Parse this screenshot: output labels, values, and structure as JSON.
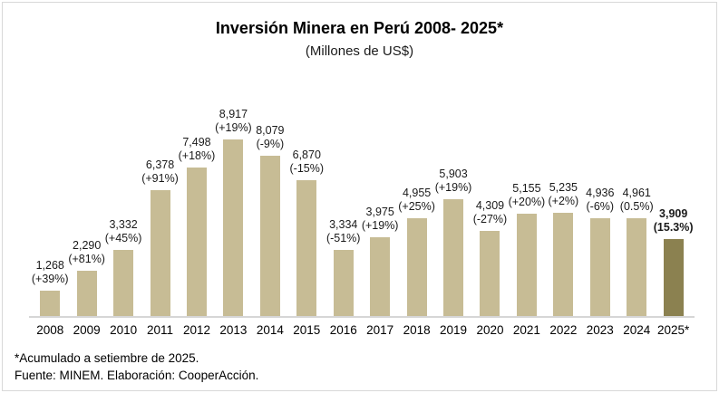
{
  "title": "Inversión Minera en Perú 2008- 2025*",
  "subtitle": "(Millones de US$)",
  "footnote": "*Acumulado a setiembre de 2025.",
  "source": "Fuente: MINEM. Elaboración: CooperAcción.",
  "colors": {
    "bar": "#c7bc95",
    "bar_highlight": "#8b8150",
    "axis_line": "#d6d6d6",
    "text": "#1a1a1a"
  },
  "chart_data": {
    "type": "bar",
    "title": "Inversión Minera en Perú 2008- 2025*",
    "subtitle": "(Millones de US$)",
    "categories": [
      "2008",
      "2009",
      "2010",
      "2011",
      "2012",
      "2013",
      "2014",
      "2015",
      "2016",
      "2017",
      "2018",
      "2019",
      "2020",
      "2021",
      "2022",
      "2023",
      "2024",
      "2025*"
    ],
    "values": [
      1268,
      2290,
      3332,
      6378,
      7498,
      8917,
      8079,
      6870,
      3334,
      3975,
      4955,
      5903,
      4309,
      5155,
      5235,
      4936,
      4961,
      3909
    ],
    "value_labels": [
      "1,268",
      "2,290",
      "3,332",
      "6,378",
      "7,498",
      "8,917",
      "8,079",
      "6,870",
      "3,334",
      "3,975",
      "4,955",
      "5,903",
      "4,309",
      "5,155",
      "5,235",
      "4,936",
      "4,961",
      "3,909"
    ],
    "pct_labels": [
      "(+39%)",
      "(+81%)",
      "(+45%)",
      "(+91%)",
      "(+18%)",
      "(+19%)",
      "(-9%)",
      "(-15%)",
      "(-51%)",
      "(+19%)",
      "(+25%)",
      "(+19%)",
      "(-27%)",
      "(+20%)",
      "(+2%)",
      "(-6%)",
      "(0.5%)",
      "(15.3%)"
    ],
    "highlight_index": 17,
    "ylim": [
      0,
      9000
    ],
    "grid": false,
    "legend": false,
    "xlabel": "",
    "ylabel": ""
  }
}
